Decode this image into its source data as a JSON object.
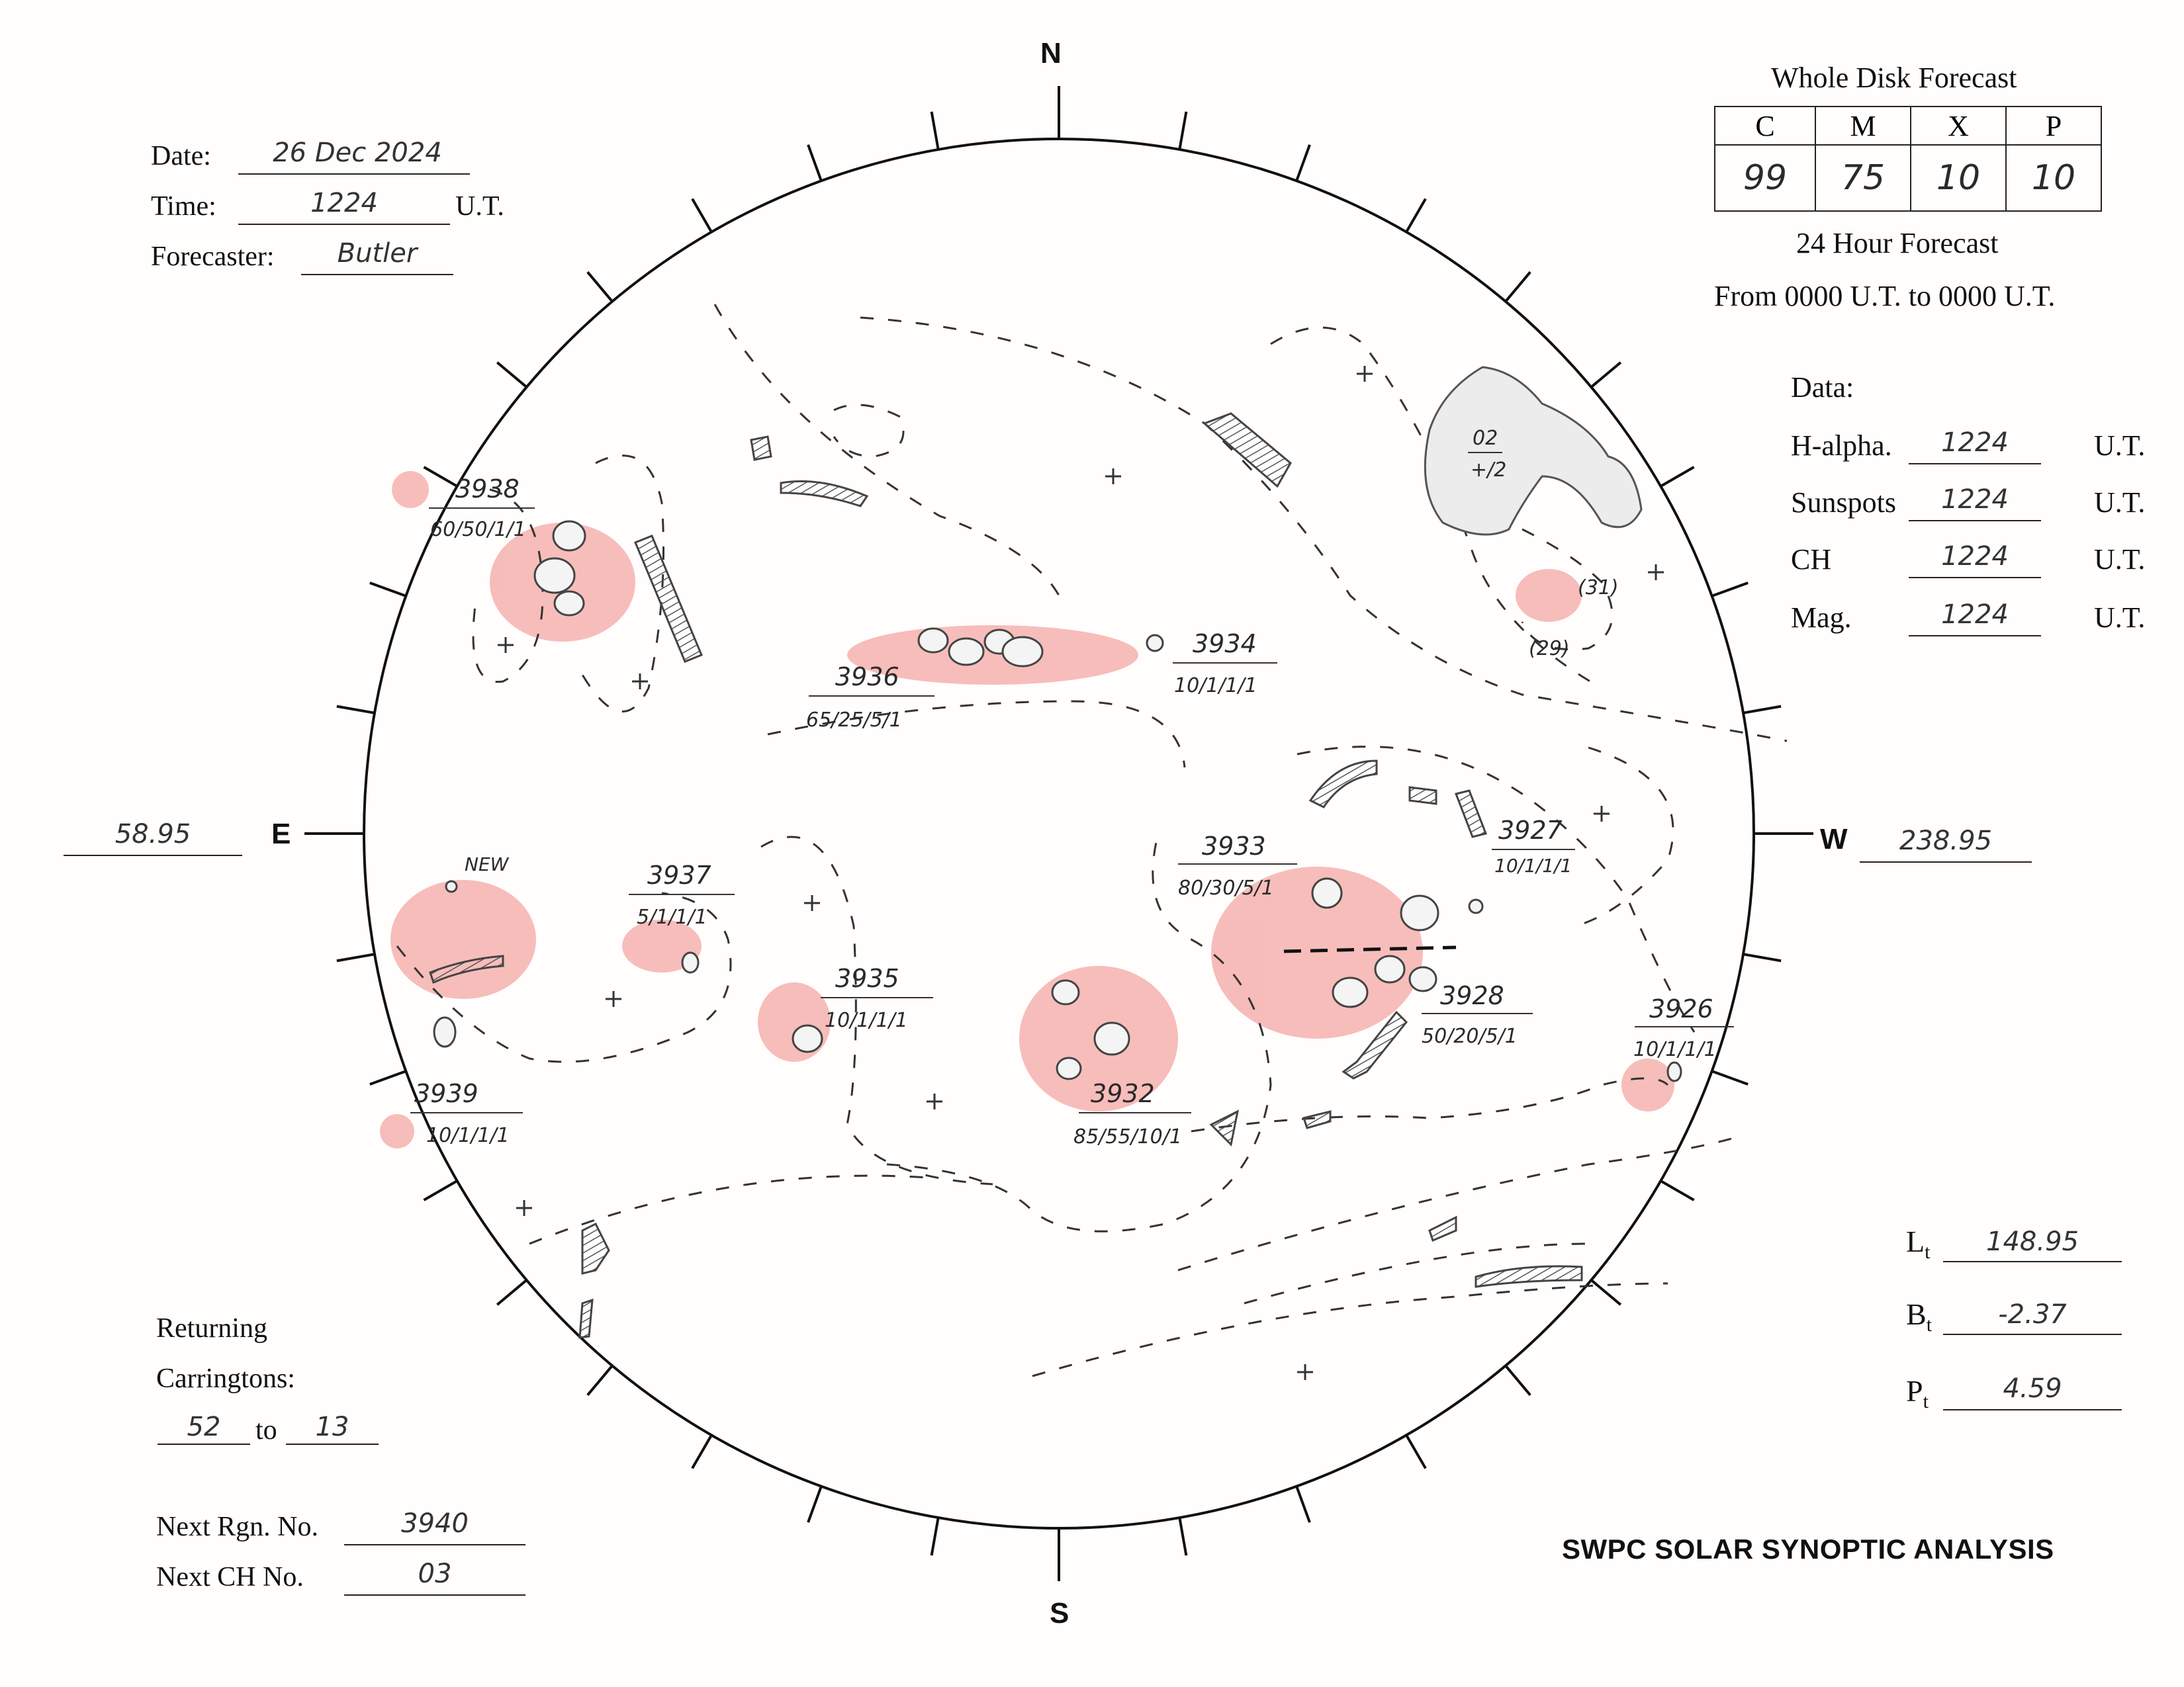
{
  "header": {
    "date_label": "Date:",
    "date_value": "26 Dec 2024",
    "time_label": "Time:",
    "time_value": "1224",
    "time_unit": "U.T.",
    "forecaster_label": "Forecaster:",
    "forecaster_value": "Butler"
  },
  "forecast": {
    "title": "Whole Disk Forecast",
    "columns": [
      "C",
      "M",
      "X",
      "P"
    ],
    "values": [
      "99",
      "75",
      "10",
      "10"
    ],
    "subtitle": "24 Hour Forecast",
    "range": "From 0000 U.T. to 0000 U.T."
  },
  "data_times": {
    "label": "Data:",
    "unit": "U.T.",
    "rows": [
      {
        "label": "H-alpha.",
        "value": "1224"
      },
      {
        "label": "Sunspots",
        "value": "1224"
      },
      {
        "label": "CH",
        "value": "1224"
      },
      {
        "label": "Mag.",
        "value": "1224"
      }
    ]
  },
  "compass": {
    "north": "N",
    "south": "S",
    "east": "E",
    "west": "W"
  },
  "longitudes": {
    "east": "58.95",
    "west": "238.95"
  },
  "ephemeris": {
    "lt_label": "L",
    "lt_sub": "t",
    "lt_value": "148.95",
    "bt_label": "B",
    "bt_sub": "t",
    "bt_value": "-2.37",
    "pt_label": "P",
    "pt_sub": "t",
    "pt_value": "4.59"
  },
  "returning": {
    "line1": "Returning",
    "line2": "Carringtons:",
    "from": "52",
    "to_word": "to",
    "to": "13"
  },
  "next": {
    "rgn_label": "Next Rgn. No.",
    "rgn_value": "3940",
    "ch_label": "Next CH No.",
    "ch_value": "03"
  },
  "footer_title": "SWPC SOLAR SYNOPTIC ANALYSIS",
  "regions": [
    {
      "number": "3938",
      "class": "60/50/1/1"
    },
    {
      "number": "3936",
      "class": "65/25/5/1"
    },
    {
      "number": "3934",
      "class": "10/1/1/1"
    },
    {
      "number": "3937",
      "class": "5/1/1/1"
    },
    {
      "number": "3935",
      "class": "10/1/1/1"
    },
    {
      "number": "3939",
      "class": "10/1/1/1"
    },
    {
      "number": "3932",
      "class": "85/55/10/1"
    },
    {
      "number": "3933",
      "class": "80/30/5/1"
    },
    {
      "number": "3927",
      "class": "10/1/1/1"
    },
    {
      "number": "3928",
      "class": "50/20/5/1"
    },
    {
      "number": "3926",
      "class": "10/1/1/1"
    }
  ],
  "coronal_hole": {
    "number": "02",
    "polarity": "+/2"
  },
  "annotations": {
    "new": "NEW",
    "ch31": "(31)",
    "ch29": "(29)"
  },
  "colors": {
    "ink": "#222222",
    "pencil": "#555555",
    "plage": "#e8453c"
  }
}
